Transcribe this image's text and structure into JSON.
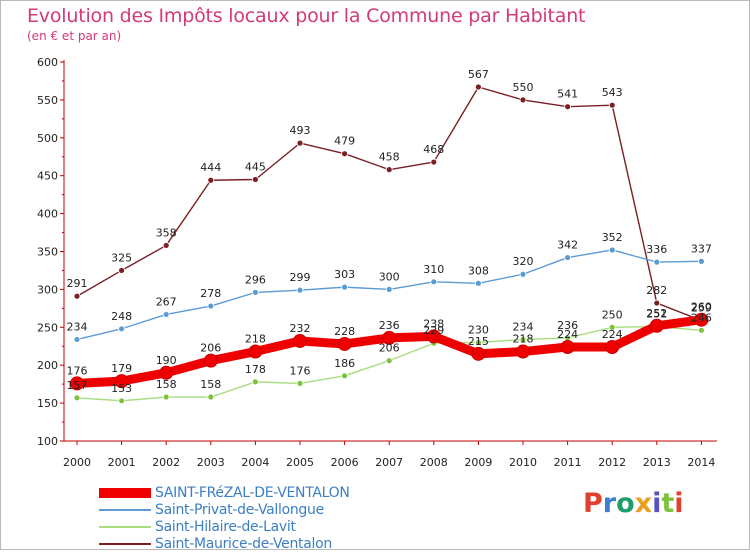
{
  "title": "Evolution des Impôts locaux pour la Commune par Habitant",
  "subtitle": "(en € et par an)",
  "colors": {
    "title": "#d23a7a",
    "legend_text": "#3c7fc3",
    "axis": "#c00000"
  },
  "logo": {
    "text": "Proxiti",
    "letter_colors": [
      "#e04030",
      "#3a7fd5",
      "#1e9e6a",
      "#e8a020",
      "#5b4fc2",
      "#7cc23a",
      "#e04030"
    ]
  },
  "chart_data": {
    "type": "line",
    "x": [
      "2000",
      "2001",
      "2002",
      "2003",
      "2004",
      "2005",
      "2006",
      "2007",
      "2008",
      "2009",
      "2010",
      "2011",
      "2012",
      "2013",
      "2014"
    ],
    "ylim": [
      100,
      600
    ],
    "yticks": [
      "100",
      "150",
      "200",
      "250",
      "300",
      "350",
      "400",
      "450",
      "500",
      "550",
      "600"
    ],
    "grid": false,
    "legend_position": "bottom-left",
    "series": [
      {
        "name": "SAINT-FRéZAL-DE-VENTALON",
        "color": "#ee0000",
        "marker_color": "#ee0000",
        "emphasis": "bold",
        "values": [
          176,
          179,
          190,
          206,
          218,
          232,
          228,
          236,
          238,
          215,
          218,
          224,
          224,
          252,
          260
        ],
        "labels": [
          "176",
          "179",
          "190",
          "206",
          "218",
          "232",
          "228",
          "236",
          "238",
          "215",
          "218",
          "224",
          "224",
          "252",
          "260"
        ]
      },
      {
        "name": "Saint-Privat-de-Vallongue",
        "color": "#5b9bd5",
        "marker_color": "#5b9bd5",
        "emphasis": "normal",
        "values": [
          234,
          248,
          267,
          278,
          296,
          299,
          303,
          300,
          310,
          308,
          320,
          342,
          352,
          336,
          337
        ],
        "labels": [
          "234",
          "248",
          "267",
          "278",
          "296",
          "299",
          "303",
          "300",
          "310",
          "308",
          "320",
          "342",
          "352",
          "336",
          "337"
        ]
      },
      {
        "name": "Saint-Hilaire-de-Lavit",
        "color": "#a8dc7e",
        "marker_color": "#7cc23a",
        "emphasis": "normal",
        "values": [
          157,
          153,
          158,
          158,
          178,
          176,
          186,
          206,
          229,
          230,
          234,
          236,
          250,
          251,
          246
        ],
        "labels": [
          "157",
          "153",
          "158",
          "158",
          "178",
          "176",
          "186",
          "206",
          "229",
          "230",
          "234",
          "236",
          "250",
          "251",
          "246"
        ]
      },
      {
        "name": "Saint-Maurice-de-Ventalon",
        "color": "#7a1f24",
        "marker_color": "#7a1f24",
        "emphasis": "normal",
        "values": [
          291,
          325,
          358,
          444,
          445,
          493,
          479,
          458,
          468,
          567,
          550,
          541,
          543,
          282,
          259
        ],
        "labels": [
          "291",
          "325",
          "358",
          "444",
          "445",
          "493",
          "479",
          "458",
          "468",
          "567",
          "550",
          "541",
          "543",
          "282",
          "259"
        ]
      }
    ]
  }
}
